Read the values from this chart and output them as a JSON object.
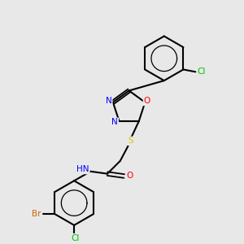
{
  "bg_color": "#e8e8e8",
  "bond_color": "#000000",
  "atom_colors": {
    "N": "#0000ff",
    "O": "#ff0000",
    "S": "#cccc00",
    "Cl": "#00bb00",
    "Br": "#cc6600",
    "C": "#000000",
    "H": "#000000"
  },
  "figsize": [
    3.0,
    3.0
  ],
  "dpi": 100
}
